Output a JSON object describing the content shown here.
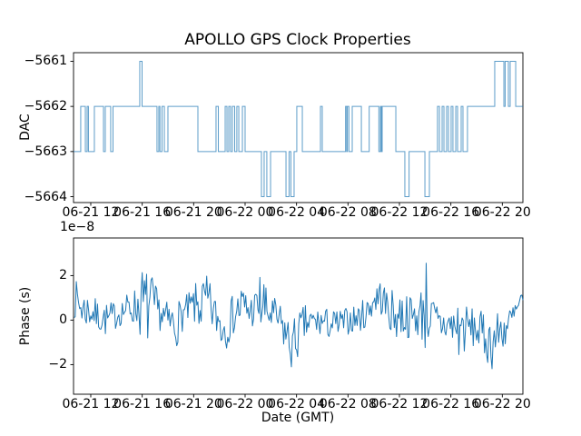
{
  "chart_data": [
    {
      "type": "line",
      "subtype": "step",
      "title": "APOLLO GPS Clock Properties",
      "ylabel": "DAC",
      "line_color": "#1f77b4",
      "xlim": [
        -1.34,
        33.6
      ],
      "ylim": [
        -5664.13,
        -5660.81
      ],
      "xtick_hours": [
        0,
        4,
        8,
        12,
        16,
        20,
        24,
        28,
        32
      ],
      "xtick_labels": [
        "06-21 12",
        "06-21 16",
        "06-21 20",
        "06-22 00",
        "06-22 04",
        "06-22 08",
        "06-22 12",
        "06-22 16",
        "06-22 20"
      ],
      "ytick_values": [
        -5661,
        -5662,
        -5663,
        -5664
      ],
      "ytick_labels": [
        "−5661",
        "−5662",
        "−5663",
        "−5664"
      ],
      "grid": false,
      "legend": null,
      "steps_hours_dac": [
        [
          -1.34,
          -5663
        ],
        [
          -0.78,
          -5662
        ],
        [
          -0.42,
          -5663
        ],
        [
          -0.28,
          -5662
        ],
        [
          -0.18,
          -5663
        ],
        [
          0.28,
          -5662
        ],
        [
          0.99,
          -5663
        ],
        [
          1.13,
          -5662
        ],
        [
          1.55,
          -5663
        ],
        [
          1.73,
          -5662
        ],
        [
          3.81,
          -5661
        ],
        [
          3.99,
          -5662
        ],
        [
          5.15,
          -5663
        ],
        [
          5.29,
          -5662
        ],
        [
          5.38,
          -5663
        ],
        [
          5.54,
          -5662
        ],
        [
          5.72,
          -5663
        ],
        [
          6.0,
          -5662
        ],
        [
          8.33,
          -5663
        ],
        [
          9.74,
          -5662
        ],
        [
          9.92,
          -5663
        ],
        [
          10.45,
          -5662
        ],
        [
          10.59,
          -5663
        ],
        [
          10.73,
          -5662
        ],
        [
          10.87,
          -5663
        ],
        [
          11.01,
          -5662
        ],
        [
          11.19,
          -5663
        ],
        [
          11.36,
          -5662
        ],
        [
          11.51,
          -5663
        ],
        [
          11.79,
          -5662
        ],
        [
          12.0,
          -5663
        ],
        [
          13.27,
          -5664
        ],
        [
          13.48,
          -5663
        ],
        [
          13.69,
          -5664
        ],
        [
          13.98,
          -5663
        ],
        [
          15.18,
          -5664
        ],
        [
          15.42,
          -5663
        ],
        [
          15.56,
          -5664
        ],
        [
          15.81,
          -5663
        ],
        [
          16.02,
          -5662
        ],
        [
          16.45,
          -5663
        ],
        [
          17.86,
          -5662
        ],
        [
          18.0,
          -5663
        ],
        [
          19.81,
          -5662
        ],
        [
          19.9,
          -5663
        ],
        [
          19.95,
          -5662
        ],
        [
          20.07,
          -5663
        ],
        [
          20.33,
          -5662
        ],
        [
          21.04,
          -5663
        ],
        [
          21.65,
          -5662
        ],
        [
          22.4,
          -5663
        ],
        [
          22.52,
          -5662
        ],
        [
          22.59,
          -5663
        ],
        [
          22.66,
          -5662
        ],
        [
          23.72,
          -5663
        ],
        [
          24.42,
          -5664
        ],
        [
          24.75,
          -5663
        ],
        [
          25.98,
          -5664
        ],
        [
          26.33,
          -5663
        ],
        [
          26.96,
          -5662
        ],
        [
          27.11,
          -5663
        ],
        [
          27.32,
          -5662
        ],
        [
          27.46,
          -5663
        ],
        [
          27.67,
          -5662
        ],
        [
          27.81,
          -5663
        ],
        [
          28.02,
          -5662
        ],
        [
          28.16,
          -5663
        ],
        [
          28.38,
          -5662
        ],
        [
          28.52,
          -5663
        ],
        [
          28.8,
          -5662
        ],
        [
          28.94,
          -5663
        ],
        [
          29.29,
          -5662
        ],
        [
          31.41,
          -5661
        ],
        [
          32.12,
          -5662
        ],
        [
          32.22,
          -5661
        ],
        [
          32.47,
          -5662
        ],
        [
          32.61,
          -5661
        ],
        [
          33.04,
          -5662
        ]
      ]
    },
    {
      "type": "line",
      "subtype": "noise",
      "ylabel": "Phase (s)",
      "xlabel": "Date (GMT)",
      "offset_text": "1e−8",
      "unit_scale": "1e-8",
      "line_color": "#1f77b4",
      "xlim": [
        -1.34,
        33.6
      ],
      "ylim": [
        -3.33,
        3.69
      ],
      "xtick_hours": [
        0,
        4,
        8,
        12,
        16,
        20,
        24,
        28,
        32
      ],
      "xtick_labels": [
        "06-21 12",
        "06-21 16",
        "06-21 20",
        "06-22 00",
        "06-22 04",
        "06-22 08",
        "06-22 12",
        "06-22 16",
        "06-22 20"
      ],
      "ytick_values": [
        2,
        0,
        -2
      ],
      "ytick_labels": [
        "2",
        "0",
        "−2"
      ],
      "grid": false,
      "legend": null,
      "envelope_hours_mean_amp": {
        "x": [
          -1.3,
          -0.6,
          0.0,
          0.7,
          1.4,
          2.1,
          2.8,
          3.5,
          4.0,
          4.6,
          5.3,
          6.0,
          6.6,
          7.2,
          7.9,
          8.5,
          9.1,
          9.7,
          10.3,
          11.0,
          11.7,
          12.4,
          13.0,
          13.3,
          13.7,
          14.3,
          15.0,
          15.6,
          16.0,
          16.6,
          17.3,
          18.0,
          18.7,
          19.4,
          20.1,
          20.8,
          21.4,
          22.0,
          22.5,
          23.0,
          23.6,
          24.3,
          25.0,
          25.6,
          26.0,
          26.4,
          27.0,
          27.7,
          28.3,
          28.7,
          29.3,
          30.0,
          30.7,
          31.2,
          31.8,
          32.4,
          33.0,
          33.6
        ],
        "mean": [
          1.0,
          0.5,
          0.4,
          0.1,
          0.0,
          0.3,
          0.5,
          0.6,
          0.7,
          0.5,
          0.4,
          -0.1,
          -0.2,
          0.3,
          0.6,
          0.7,
          0.7,
          0.2,
          -0.3,
          0.2,
          0.6,
          0.4,
          0.6,
          0.8,
          0.3,
          0.2,
          -0.4,
          -1.2,
          -0.8,
          -0.2,
          -0.1,
          -0.1,
          -0.2,
          -0.2,
          0.0,
          0.1,
          0.3,
          0.9,
          1.1,
          0.6,
          0.2,
          0.3,
          0.1,
          0.2,
          0.9,
          0.1,
          -0.2,
          -0.2,
          -0.3,
          -0.4,
          -0.3,
          -0.4,
          -0.8,
          -1.0,
          -0.5,
          -0.3,
          0.2,
          0.9
        ],
        "amp": [
          0.9,
          0.9,
          0.8,
          0.7,
          0.8,
          0.6,
          0.7,
          0.9,
          1.7,
          1.8,
          0.8,
          0.9,
          1.1,
          0.7,
          0.8,
          1.3,
          1.3,
          0.9,
          1.3,
          0.9,
          1.2,
          0.8,
          1.0,
          1.9,
          0.9,
          0.8,
          1.0,
          1.1,
          1.1,
          0.9,
          0.7,
          0.7,
          0.7,
          0.7,
          0.6,
          0.7,
          0.7,
          0.7,
          0.8,
          0.9,
          1.1,
          1.2,
          0.9,
          1.0,
          2.4,
          1.2,
          1.0,
          0.9,
          1.0,
          1.7,
          0.9,
          0.9,
          1.1,
          1.2,
          1.0,
          0.9,
          0.9,
          0.7
        ]
      }
    }
  ],
  "style": {
    "spine_color": "#000000",
    "tick_color": "#000000",
    "background": "#ffffff"
  }
}
